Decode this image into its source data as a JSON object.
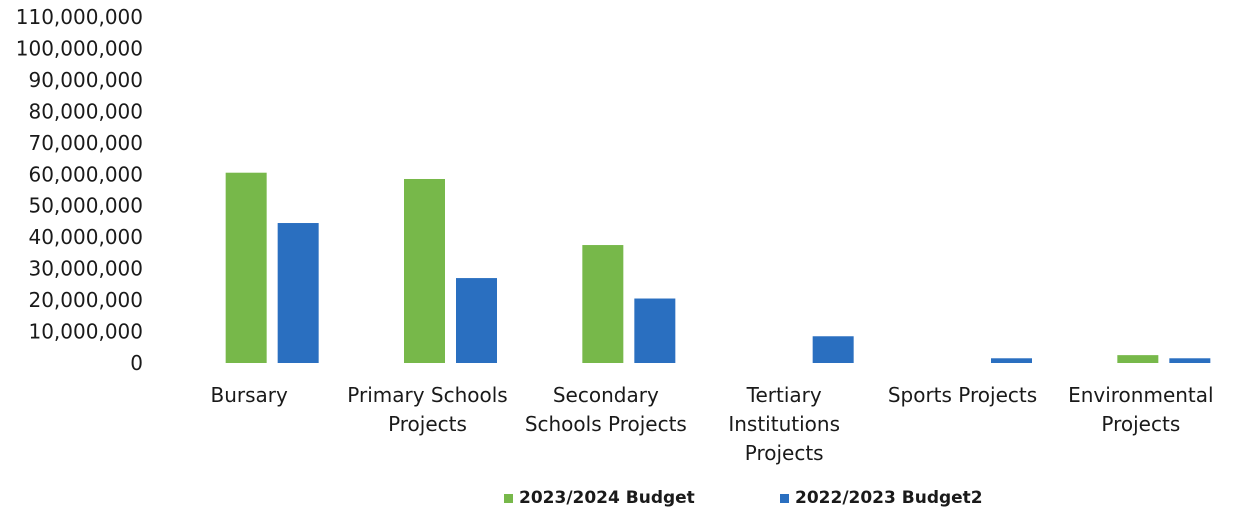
{
  "chart_data": {
    "type": "bar",
    "categories": [
      "Bursary",
      "Primary Schools Projects",
      "Secondary Schools Projects",
      "Tertiary Institutions Projects",
      "Sports Projects",
      "Environmental Projects"
    ],
    "category_lines": [
      [
        "Bursary"
      ],
      [
        "Primary Schools",
        "Projects"
      ],
      [
        "Secondary",
        "Schools Projects"
      ],
      [
        "Tertiary",
        "Institutions",
        "Projects"
      ],
      [
        "Sports Projects"
      ],
      [
        "Environmental",
        "Projects"
      ]
    ],
    "series": [
      {
        "name": "2023/2024 Budget",
        "color": "#77b84a",
        "values": [
          60500000,
          58500000,
          37500000,
          0,
          0,
          2500000
        ]
      },
      {
        "name": "2022/2023 Budget2",
        "color": "#2a6fc0",
        "values": [
          44500000,
          27000000,
          20500000,
          8500000,
          1500000,
          1500000
        ]
      }
    ],
    "ylim": [
      0,
      110000000
    ],
    "ytick_step": 10000000,
    "ytick_labels": [
      "0",
      "10,000,000",
      "20,000,000",
      "30,000,000",
      "40,000,000",
      "50,000,000",
      "60,000,000",
      "70,000,000",
      "80,000,000",
      "90,000,000",
      "100,000,000",
      "110,000,000"
    ],
    "grid": false,
    "legend_position": "bottom",
    "title": "",
    "xlabel": "",
    "ylabel": ""
  }
}
